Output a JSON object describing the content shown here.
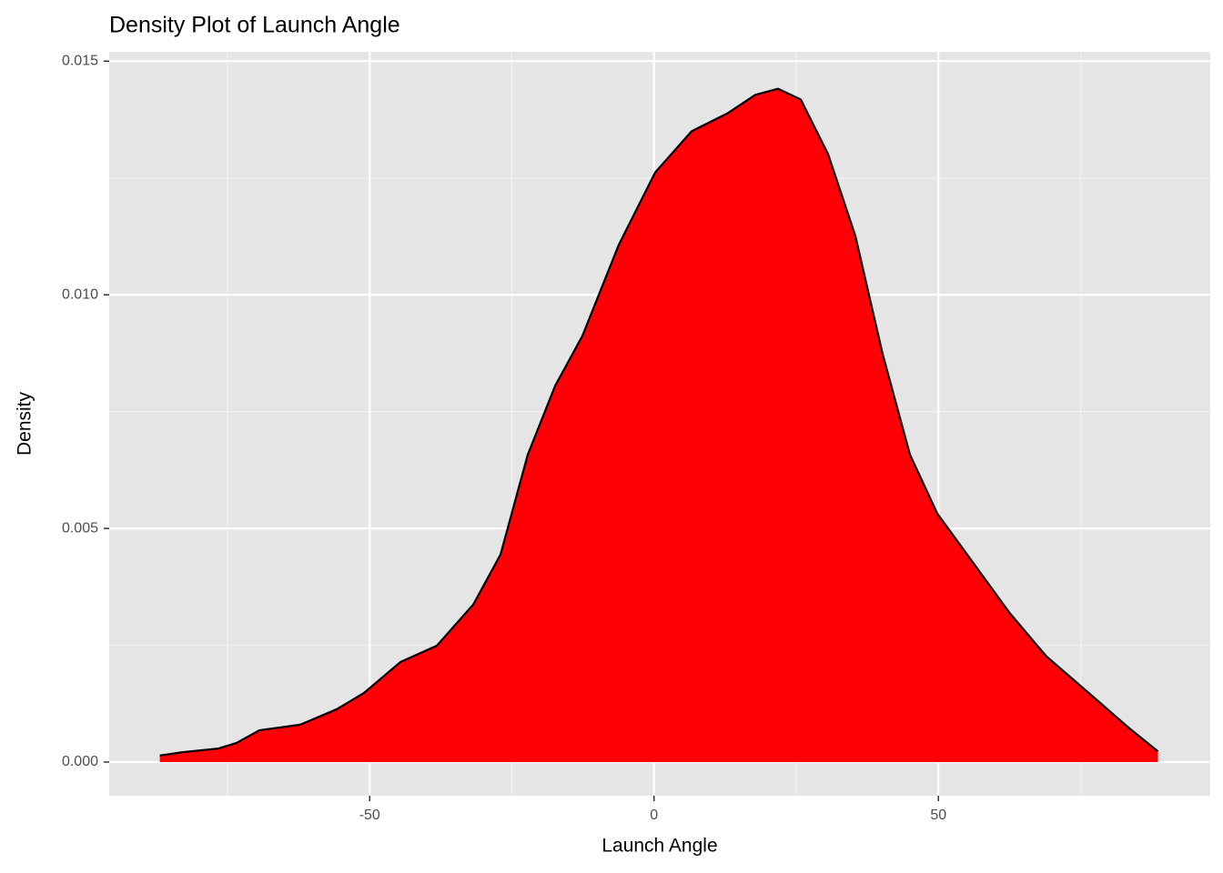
{
  "chart_data": {
    "type": "density",
    "title": "Density Plot of Launch Angle",
    "x_label": "Launch Angle",
    "y_label": "Density",
    "x": [
      -86.9,
      -83,
      -76.6,
      -73.4,
      -69.4,
      -62.2,
      -55.8,
      -51,
      -44.6,
      -38.2,
      -31.8,
      -27,
      -22.2,
      -17.4,
      -12.6,
      -6.2,
      0.2,
      6.6,
      13,
      17.8,
      21.8,
      25.8,
      30.6,
      35.4,
      40.2,
      45,
      49.8,
      56.2,
      62.6,
      69,
      77,
      83.4,
      88.6
    ],
    "values": [
      0.00014,
      0.00021,
      0.00029,
      0.00041,
      0.00068,
      0.0008,
      0.00113,
      0.00148,
      0.00214,
      0.00249,
      0.00337,
      0.00444,
      0.00658,
      0.00805,
      0.00912,
      0.01107,
      0.01262,
      0.0135,
      0.01389,
      0.01428,
      0.01441,
      0.01418,
      0.01301,
      0.01126,
      0.00873,
      0.00658,
      0.00532,
      0.00425,
      0.00318,
      0.00226,
      0.00142,
      0.00074,
      0.00023
    ],
    "color": "#fe0006",
    "line_color": "#000000",
    "xlim": [
      -95.8,
      97.8
    ],
    "ylim": [
      -0.00072,
      0.0152
    ],
    "xticks": [
      -50,
      0,
      50
    ],
    "yticks": [
      {
        "value": 0,
        "label": "0.000"
      },
      {
        "value": 0.005,
        "label": "0.005"
      },
      {
        "value": 0.01,
        "label": "0.010"
      },
      {
        "value": 0.015,
        "label": "0.015"
      }
    ],
    "x_minor_grid": [
      -75,
      -25,
      25,
      75
    ],
    "y_minor_grid": [
      0.0025,
      0.0075,
      0.0125
    ],
    "grid": true
  }
}
